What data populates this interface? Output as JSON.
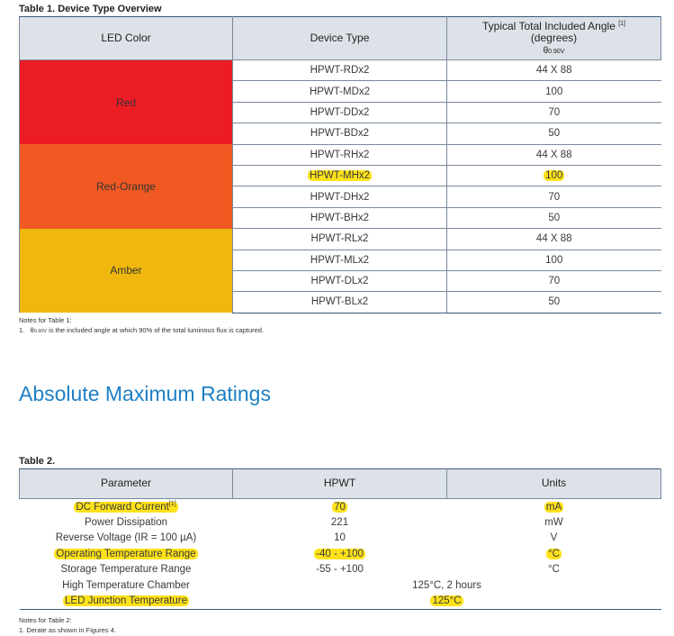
{
  "table1": {
    "caption": "Table 1.  Device Type Overview",
    "headers": {
      "led_color": "LED Color",
      "device_type": "Device Type",
      "angle_title": "Typical Total Included Angle",
      "angle_ref": "[1]",
      "angle_units": "(degrees)",
      "angle_symbol": "θ",
      "angle_subscript": "0.90V"
    },
    "groups": [
      {
        "color_name": "Red",
        "bg": "#ec1c24",
        "rows": [
          {
            "device": "HPWT-RDx2",
            "angle": "44 X 88"
          },
          {
            "device": "HPWT-MDx2",
            "angle": "100"
          },
          {
            "device": "HPWT-DDx2",
            "angle": "70"
          },
          {
            "device": "HPWT-BDx2",
            "angle": "50"
          }
        ]
      },
      {
        "color_name": "Red-Orange",
        "bg": "#f05a22",
        "rows": [
          {
            "device": "HPWT-RHx2",
            "angle": "44 X 88"
          },
          {
            "device": "HPWT-MHx2",
            "angle": "100",
            "highlight": true
          },
          {
            "device": "HPWT-DHx2",
            "angle": "70"
          },
          {
            "device": "HPWT-BHx2",
            "angle": "50"
          }
        ]
      },
      {
        "color_name": "Amber",
        "bg": "#f0b80f",
        "rows": [
          {
            "device": "HPWT-RLx2",
            "angle": "44 X 88"
          },
          {
            "device": "HPWT-MLx2",
            "angle": "100"
          },
          {
            "device": "HPWT-DLx2",
            "angle": "70"
          },
          {
            "device": "HPWT-BLx2",
            "angle": "50"
          }
        ]
      }
    ],
    "notes": {
      "heading": "Notes for Table 1:",
      "item_number": "1.",
      "item_symbol": "θ",
      "item_subscript": "0.90V",
      "item_text": " is the included angle at which 90% of the total luminous flux is captured."
    }
  },
  "section_title": "Absolute Maximum Ratings",
  "table2": {
    "caption": "Table 2.",
    "headers": {
      "parameter": "Parameter",
      "hpwt": "HPWT",
      "units": "Units"
    },
    "rows": [
      {
        "parameter": "DC Forward Current",
        "ref": "[1]",
        "value": "70",
        "units": "mA",
        "highlight": true
      },
      {
        "parameter": "Power Dissipation",
        "value": "221",
        "units": "mW"
      },
      {
        "parameter": "Reverse Voltage (IR = 100 µA)",
        "value": "10",
        "units": "V"
      },
      {
        "parameter": "Operating Temperature Range",
        "value": "-40 - +100",
        "units": "°C",
        "highlight": true
      },
      {
        "parameter": "Storage Temperature Range",
        "value": "-55 - +100",
        "units": "°C"
      },
      {
        "parameter": "High Temperature Chamber",
        "merged": "125°C,  2 hours"
      },
      {
        "parameter": "LED Junction Temperature",
        "merged": "125°C",
        "highlight": true
      }
    ],
    "notes": {
      "heading": "Notes for Table 2:",
      "item": "1.   Derate as shown in Figures 4."
    }
  },
  "colors": {
    "highlight": "#ffe21a",
    "title_blue": "#1d7fc5",
    "header_bg": "#dde2e8"
  }
}
